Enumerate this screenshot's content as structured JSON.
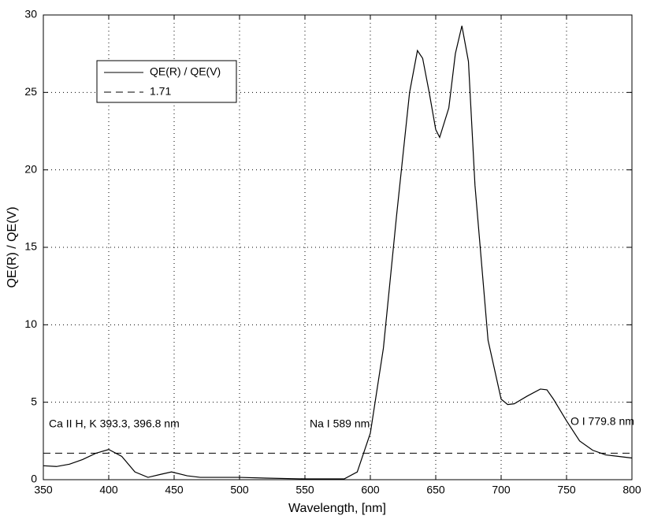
{
  "chart_data": {
    "type": "line",
    "xlabel": "Wavelength,  [nm]",
    "ylabel": "QE(R) / QE(V)",
    "x": [
      350,
      360,
      370,
      380,
      390,
      400,
      410,
      420,
      430,
      440,
      448,
      460,
      470,
      480,
      500,
      520,
      550,
      570,
      580,
      590,
      600,
      610,
      620,
      630,
      636,
      640,
      645,
      650,
      653,
      660,
      665,
      670,
      675,
      680,
      690,
      700,
      705,
      710,
      720,
      730,
      735,
      740,
      750,
      760,
      770,
      780,
      790,
      800
    ],
    "series": [
      {
        "name": "QE(R) / QE(V)",
        "color": "#000000",
        "values": [
          0.9,
          0.85,
          1.0,
          1.3,
          1.7,
          1.95,
          1.5,
          0.5,
          0.15,
          0.35,
          0.5,
          0.25,
          0.15,
          0.15,
          0.15,
          0.1,
          0.05,
          0.05,
          0.05,
          0.5,
          3.0,
          8.5,
          17,
          25,
          27.7,
          27.2,
          25,
          22.6,
          22.1,
          24,
          27.5,
          29.3,
          27,
          19,
          9,
          5.2,
          4.85,
          4.9,
          5.4,
          5.85,
          5.8,
          5.2,
          3.8,
          2.5,
          1.9,
          1.6,
          1.5,
          1.4
        ]
      }
    ],
    "reference_line": {
      "value": 1.71,
      "color": "#000000",
      "dashed": true
    },
    "annotations": [
      "Ca II H, K 393.3, 396.8  nm",
      "Na I 589 nm",
      "O I 779.8 nm"
    ],
    "xlim": [
      350,
      800
    ],
    "xticks": [
      350,
      400,
      450,
      500,
      550,
      600,
      650,
      700,
      750,
      800
    ],
    "ylim": [
      0,
      30
    ],
    "yticks": [
      0,
      5,
      10,
      15,
      20,
      25,
      30
    ],
    "grid": true
  }
}
